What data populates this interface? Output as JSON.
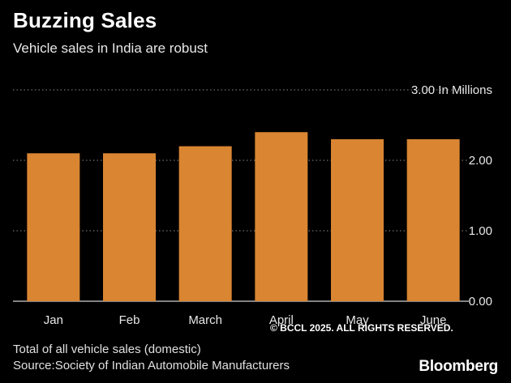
{
  "chart_data": {
    "type": "bar",
    "title": "Buzzing Sales",
    "subtitle": "Vehicle sales in India are robust",
    "categories": [
      "Jan",
      "Feb",
      "March",
      "April",
      "May",
      "June"
    ],
    "values": [
      2.1,
      2.1,
      2.2,
      2.4,
      2.3,
      2.3
    ],
    "unit_label": "In Millions",
    "y_ticks": [
      "0.00",
      "1.00",
      "2.00",
      "3.00"
    ],
    "ylim": [
      0,
      3
    ],
    "xlabel": "",
    "ylabel": "",
    "grid": true,
    "bar_color": "#d98532"
  },
  "footer": {
    "note": "Total of all vehicle sales (domestic)",
    "source": "Source:Society of Indian Automobile Manufacturers",
    "brand": "Bloomberg",
    "copyright": "© BCCL 2025. ALL RIGHTS RESERVED."
  }
}
